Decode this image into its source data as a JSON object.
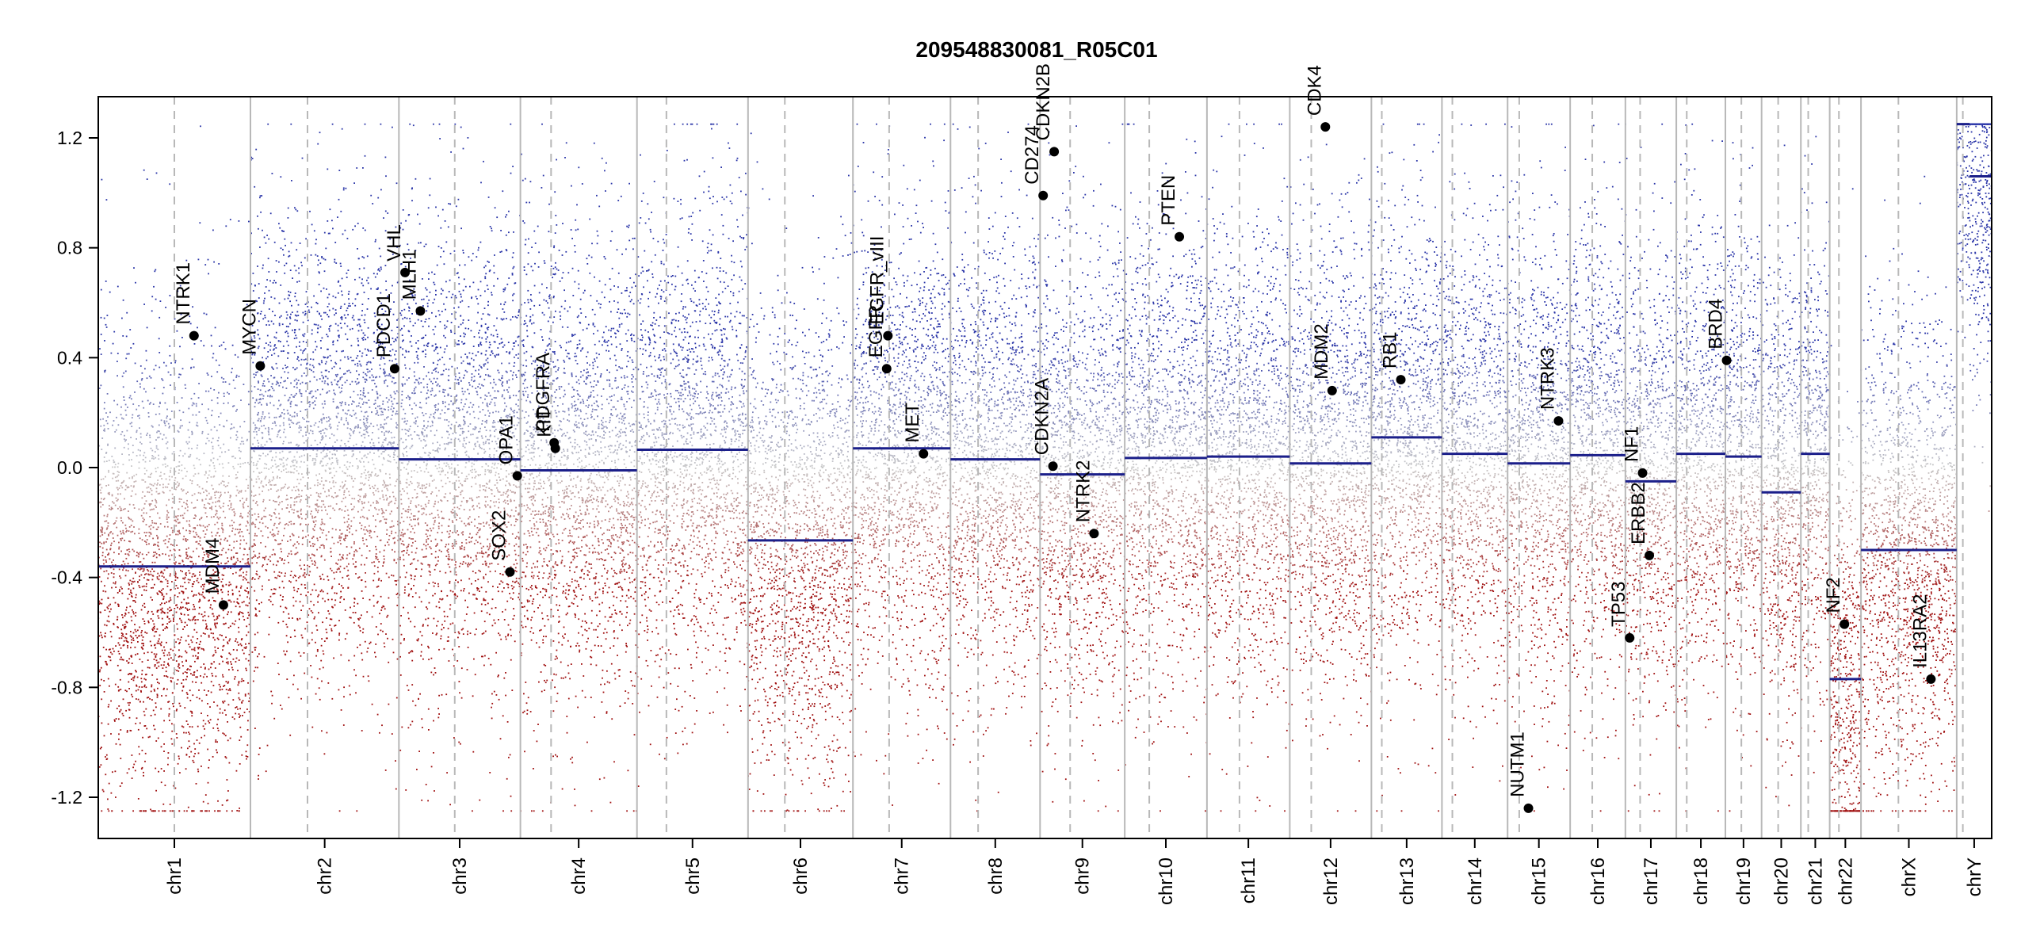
{
  "chart_data": {
    "type": "scatter",
    "title": "209548830081_R05C01",
    "xlabel": "",
    "ylabel": "",
    "ylim": [
      -1.35,
      1.35
    ],
    "yticks": [
      -1.2,
      -0.8,
      -0.4,
      0.0,
      0.4,
      0.8,
      1.2
    ],
    "ytick_labels": [
      "-1.2",
      "-0.8",
      "-0.4",
      "0.0",
      "0.4",
      "0.8",
      "1.2"
    ],
    "grid": false,
    "legend": "none",
    "chromosomes": [
      {
        "name": "chr1",
        "start": 0,
        "end": 248,
        "centromere": 124
      },
      {
        "name": "chr2",
        "start": 248,
        "end": 490,
        "centromere": 341
      },
      {
        "name": "chr3",
        "start": 490,
        "end": 688,
        "centromere": 581
      },
      {
        "name": "chr4",
        "start": 688,
        "end": 878,
        "centromere": 738
      },
      {
        "name": "chr5",
        "start": 878,
        "end": 1059,
        "centromere": 926
      },
      {
        "name": "chr6",
        "start": 1059,
        "end": 1230,
        "centromere": 1119
      },
      {
        "name": "chr7",
        "start": 1230,
        "end": 1389,
        "centromere": 1289
      },
      {
        "name": "chr8",
        "start": 1389,
        "end": 1535,
        "centromere": 1434
      },
      {
        "name": "chr9",
        "start": 1535,
        "end": 1673,
        "centromere": 1584
      },
      {
        "name": "chr10",
        "start": 1673,
        "end": 1807,
        "centromere": 1713
      },
      {
        "name": "chr11",
        "start": 1807,
        "end": 1942,
        "centromere": 1860
      },
      {
        "name": "chr12",
        "start": 1942,
        "end": 2075,
        "centromere": 1977
      },
      {
        "name": "chr13",
        "start": 2075,
        "end": 2190,
        "centromere": 2092
      },
      {
        "name": "chr14",
        "start": 2190,
        "end": 2297,
        "centromere": 2207
      },
      {
        "name": "chr15",
        "start": 2297,
        "end": 2399,
        "centromere": 2316
      },
      {
        "name": "chr16",
        "start": 2399,
        "end": 2489,
        "centromere": 2435
      },
      {
        "name": "chr17",
        "start": 2489,
        "end": 2572,
        "centromere": 2513
      },
      {
        "name": "chr18",
        "start": 2572,
        "end": 2652,
        "centromere": 2589
      },
      {
        "name": "chr19",
        "start": 2652,
        "end": 2711,
        "centromere": 2678
      },
      {
        "name": "chr20",
        "start": 2711,
        "end": 2775,
        "centromere": 2738
      },
      {
        "name": "chr21",
        "start": 2775,
        "end": 2822,
        "centromere": 2787
      },
      {
        "name": "chr22",
        "start": 2822,
        "end": 2873,
        "centromere": 2837
      },
      {
        "name": "chrX",
        "start": 2873,
        "end": 3029,
        "centromere": 2934
      },
      {
        "name": "chrY",
        "start": 3029,
        "end": 3086,
        "centromere": 3039
      }
    ],
    "segments": [
      {
        "chr": "chr1",
        "start": 0,
        "end": 248,
        "value": -0.36
      },
      {
        "chr": "chr2",
        "start": 248,
        "end": 490,
        "value": 0.07
      },
      {
        "chr": "chr3",
        "start": 490,
        "end": 688,
        "value": 0.03
      },
      {
        "chr": "chr4",
        "start": 688,
        "end": 878,
        "value": -0.01
      },
      {
        "chr": "chr5",
        "start": 878,
        "end": 1059,
        "value": 0.065
      },
      {
        "chr": "chr6",
        "start": 1059,
        "end": 1230,
        "value": -0.265
      },
      {
        "chr": "chr7",
        "start": 1230,
        "end": 1389,
        "value": 0.07
      },
      {
        "chr": "chr8",
        "start": 1389,
        "end": 1535,
        "value": 0.03
      },
      {
        "chr": "chr9",
        "start": 1535,
        "end": 1673,
        "value": -0.025
      },
      {
        "chr": "chr10",
        "start": 1673,
        "end": 1807,
        "value": 0.035
      },
      {
        "chr": "chr11",
        "start": 1807,
        "end": 1942,
        "value": 0.04
      },
      {
        "chr": "chr12",
        "start": 1942,
        "end": 2075,
        "value": 0.015
      },
      {
        "chr": "chr13",
        "start": 2075,
        "end": 2190,
        "value": 0.11
      },
      {
        "chr": "chr14",
        "start": 2190,
        "end": 2297,
        "value": 0.05
      },
      {
        "chr": "chr15",
        "start": 2297,
        "end": 2399,
        "value": 0.015
      },
      {
        "chr": "chr16",
        "start": 2399,
        "end": 2489,
        "value": 0.045
      },
      {
        "chr": "chr17",
        "start": 2489,
        "end": 2572,
        "value": -0.05
      },
      {
        "chr": "chr18",
        "start": 2572,
        "end": 2652,
        "value": 0.05
      },
      {
        "chr": "chr19",
        "start": 2652,
        "end": 2711,
        "value": 0.04
      },
      {
        "chr": "chr20",
        "start": 2711,
        "end": 2775,
        "value": -0.09
      },
      {
        "chr": "chr21",
        "start": 2775,
        "end": 2822,
        "value": 0.05
      },
      {
        "chr": "chr22",
        "start": 2822,
        "end": 2873,
        "value": -0.77
      },
      {
        "chr": "chrX",
        "start": 2873,
        "end": 3029,
        "value": -0.3
      },
      {
        "chr": "chrY",
        "start": 3029,
        "end": 3050,
        "value": 1.25
      },
      {
        "chr": "chrY",
        "start": 3050,
        "end": 3086,
        "value": 1.06
      }
    ],
    "genes": [
      {
        "name": "NTRK1",
        "x": 156,
        "value": 0.48
      },
      {
        "name": "MDM4",
        "x": 204,
        "value": -0.5
      },
      {
        "name": "MYCN",
        "x": 264,
        "value": 0.37
      },
      {
        "name": "PDCD1",
        "x": 483,
        "value": 0.36
      },
      {
        "name": "VHL",
        "x": 500,
        "value": 0.71
      },
      {
        "name": "MLH1",
        "x": 525,
        "value": 0.57
      },
      {
        "name": "SOX2",
        "x": 671,
        "value": -0.38
      },
      {
        "name": "OPA1",
        "x": 683,
        "value": -0.03
      },
      {
        "name": "PDGFRA",
        "x": 743,
        "value": 0.09
      },
      {
        "name": "KIT",
        "x": 745,
        "value": 0.07
      },
      {
        "name": "EGFR",
        "x": 1285,
        "value": 0.36
      },
      {
        "name": "EGFR_vIII",
        "x": 1287,
        "value": 0.48
      },
      {
        "name": "MET",
        "x": 1345,
        "value": 0.05
      },
      {
        "name": "CDKN2A",
        "x": 1556,
        "value": 0.005
      },
      {
        "name": "CDKN2B",
        "x": 1558,
        "value": 1.15
      },
      {
        "name": "CD274",
        "x": 1540,
        "value": 0.99
      },
      {
        "name": "NTRK2",
        "x": 1623,
        "value": -0.24
      },
      {
        "name": "PTEN",
        "x": 1762,
        "value": 0.84
      },
      {
        "name": "CDK4",
        "x": 2000,
        "value": 1.24
      },
      {
        "name": "MDM2",
        "x": 2011,
        "value": 0.28
      },
      {
        "name": "RB1",
        "x": 2123,
        "value": 0.32
      },
      {
        "name": "NUTM1",
        "x": 2331,
        "value": -1.24
      },
      {
        "name": "NTRK3",
        "x": 2380,
        "value": 0.17
      },
      {
        "name": "TP53",
        "x": 2496,
        "value": -0.62
      },
      {
        "name": "NF1",
        "x": 2517,
        "value": -0.02
      },
      {
        "name": "ERBB2",
        "x": 2528,
        "value": -0.32
      },
      {
        "name": "BRD4",
        "x": 2654,
        "value": 0.39
      },
      {
        "name": "NF2",
        "x": 2846,
        "value": -0.57
      },
      {
        "name": "IL13RA2",
        "x": 2987,
        "value": -0.77
      }
    ],
    "points": {
      "clip_high": 1.25,
      "clip_low": -1.25,
      "high_color": "#2a35a8",
      "mid_color": "#c8c8c8",
      "low_color": "#a01010"
    }
  },
  "colors": {
    "segment": "#1b1f8a",
    "separator": "#b8b8b8",
    "centromere": "#b8b8b8",
    "gene": "#000000",
    "axis": "#000000"
  }
}
